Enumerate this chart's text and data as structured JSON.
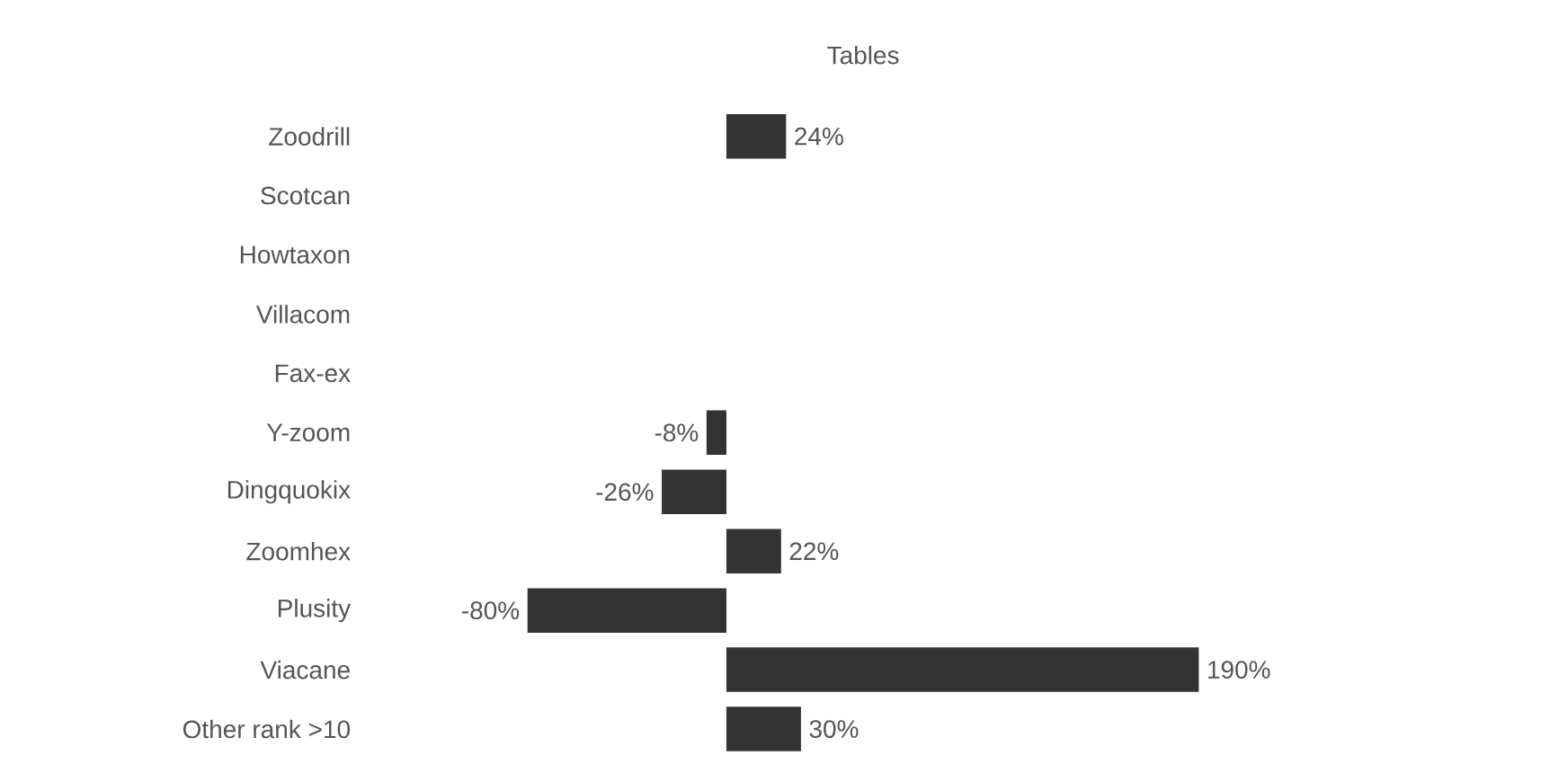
{
  "chart_data": {
    "type": "bar",
    "orientation": "horizontal",
    "title": "Tables",
    "categories": [
      "Zoodrill",
      "Scotcan",
      "Howtaxon",
      "Villacom",
      "Fax-ex",
      "Y-zoom",
      "Dingquokix",
      "Zoomhex",
      "Plusity",
      "Viacane",
      "Other rank >10"
    ],
    "values": [
      24,
      null,
      null,
      null,
      null,
      -8,
      -26,
      22,
      -80,
      190,
      30
    ],
    "value_labels": [
      "24%",
      null,
      null,
      null,
      null,
      "-8%",
      "-26%",
      "22%",
      "-80%",
      "190%",
      "30%"
    ],
    "color": "#333333",
    "tick_labels": "y"
  }
}
